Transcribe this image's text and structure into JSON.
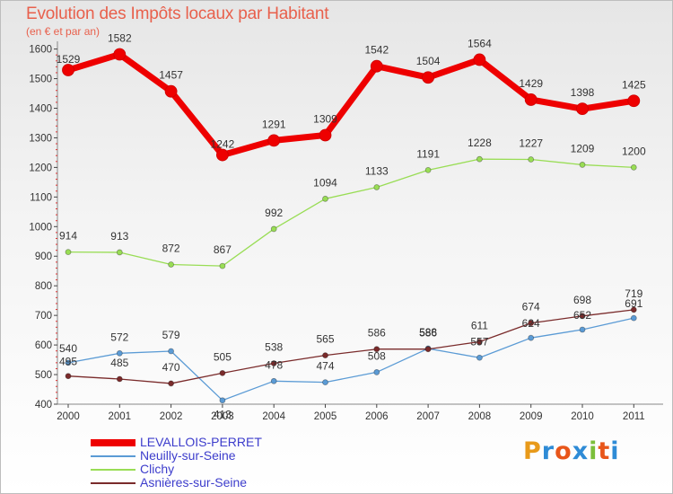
{
  "title": "Evolution des Impôts locaux par Habitant",
  "subtitle": "(en € et par an)",
  "logo_text": "Proxiti",
  "chart_data": {
    "type": "line",
    "x": [
      "2000",
      "2001",
      "2002",
      "2003",
      "2004",
      "2005",
      "2006",
      "2007",
      "2008",
      "2009",
      "2010",
      "2011"
    ],
    "yticks": [
      400,
      500,
      600,
      700,
      800,
      900,
      1000,
      1100,
      1200,
      1300,
      1400,
      1500,
      1600
    ],
    "ylim": [
      400,
      1620
    ],
    "grid": false,
    "legend_position": "bottom-left",
    "series": [
      {
        "name": "LEVALLOIS-PERRET",
        "color": "#ee0000",
        "values": [
          1529,
          1582,
          1457,
          1242,
          1291,
          1309,
          1542,
          1504,
          1564,
          1429,
          1398,
          1425
        ]
      },
      {
        "name": "Neuilly-sur-Seine",
        "color": "#5b9bd5",
        "values": [
          540,
          572,
          579,
          413,
          478,
          474,
          508,
          588,
          557,
          624,
          652,
          691
        ]
      },
      {
        "name": "Clichy",
        "color": "#99dd55",
        "values": [
          914,
          913,
          872,
          867,
          992,
          1094,
          1133,
          1191,
          1228,
          1227,
          1209,
          1200
        ]
      },
      {
        "name": "Asnières-sur-Seine",
        "color": "#7a2b2b",
        "values": [
          495,
          485,
          470,
          505,
          538,
          565,
          586,
          586,
          611,
          674,
          698,
          719
        ]
      }
    ]
  }
}
